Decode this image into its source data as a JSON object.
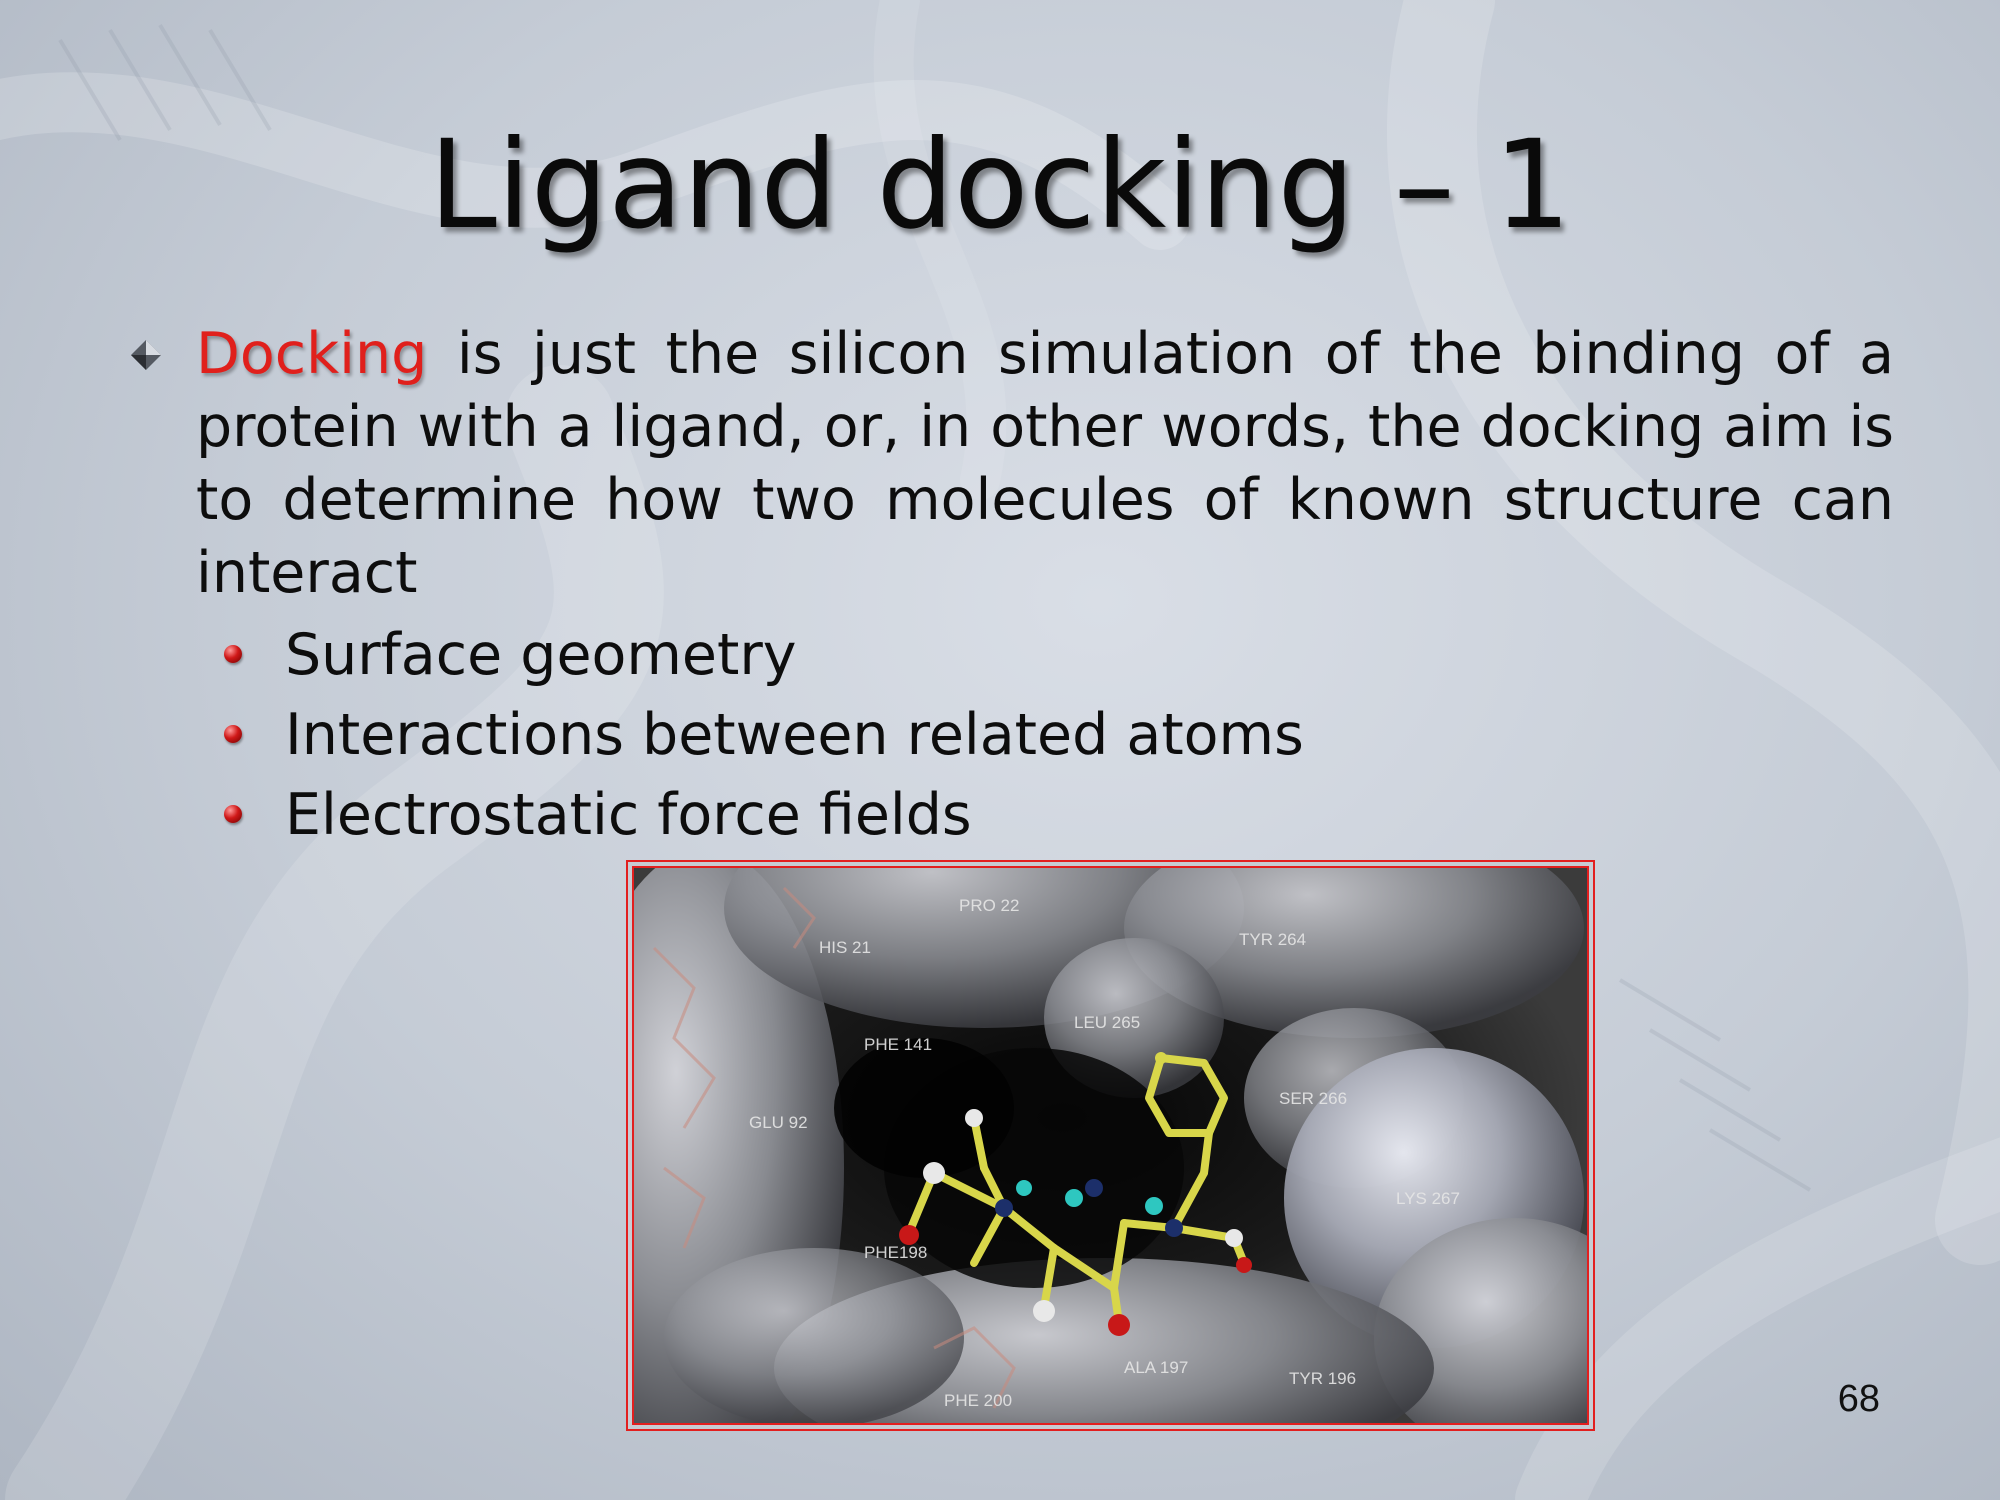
{
  "slide": {
    "title": "Ligand docking – 1",
    "main_bullet": {
      "keyword": "Docking",
      "text": " is just the silicon simulation of the binding of a protein with a ligand, or, in other words, the docking aim is to determine how two molecules of known structure can interact"
    },
    "sub_bullets": [
      "Surface geometry",
      "Interactions between related atoms",
      "Electrostatic force fields"
    ],
    "figure": {
      "residue_labels": [
        "PRO 22",
        "HIS 21",
        "TYR 264",
        "LEU 265",
        "PHE 141",
        "SER 266",
        "GLU 92",
        "LYS 267",
        "PHE198",
        "ALA 197",
        "TYR 196",
        "PHE 200"
      ]
    },
    "page_number": "68"
  },
  "colors": {
    "keyword": "#e0201c",
    "figure_border": "#e21f1f",
    "ligand": "#d8d64a",
    "oxygen": "#c81818",
    "nitrogen": "#1c2f6a",
    "hydrogen": "#2ec7c0"
  },
  "icons": {
    "main_bullet": "diamond-bullet-icon",
    "sub_bullet": "red-sphere-bullet-icon"
  }
}
